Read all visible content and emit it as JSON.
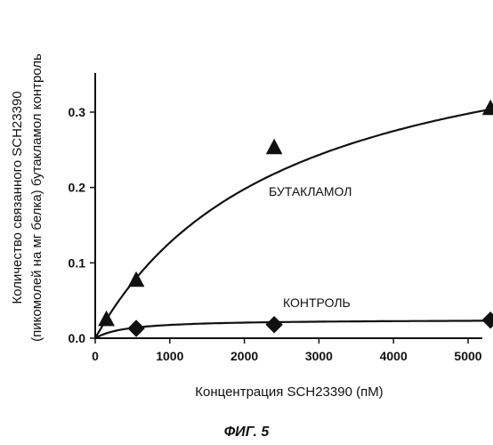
{
  "chart_data": {
    "type": "scatter",
    "xlabel": "Концентрация SCH23390 (пМ)",
    "ylabel_line1": "Количество связанного SCH23390",
    "ylabel_line2": "(пикомолей на мг белка) бутакламол  контроль",
    "figure_label": "ФИГ. 5",
    "xlim": [
      0,
      5500
    ],
    "ylim": [
      0,
      0.35
    ],
    "x_ticks": [
      0,
      1000,
      2000,
      3000,
      4000,
      5000
    ],
    "x_tick_labels": [
      "0",
      "1000",
      "2000",
      "3000",
      "4000",
      "5000"
    ],
    "y_ticks": [
      0,
      0.1,
      0.2,
      0.3
    ],
    "y_tick_labels": [
      "0.0",
      "0.1",
      "0.2",
      "0.3"
    ],
    "grid": false,
    "series": [
      {
        "name": "БУТАКЛАМОЛ",
        "marker": "triangle",
        "x": [
          150,
          550,
          2400,
          5300
        ],
        "y": [
          0.025,
          0.077,
          0.253,
          0.305
        ],
        "fit": {
          "bmax": 0.45,
          "kd": 2550
        }
      },
      {
        "name": "КОНТРОЛЬ",
        "marker": "diamond",
        "x": [
          550,
          2400,
          5300
        ],
        "y": [
          0.013,
          0.018,
          0.024
        ],
        "fit": {
          "bmax": 0.025,
          "kd": 420
        }
      }
    ]
  }
}
